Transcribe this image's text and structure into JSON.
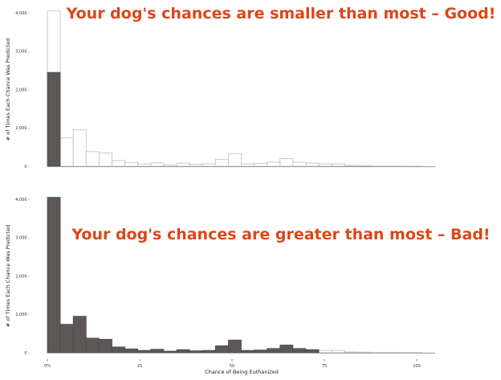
{
  "chart_data": [
    {
      "type": "bar",
      "subtype": "overlaid-histogram",
      "annotation": "Your dog's chances are smaller than most – Good!",
      "ylabel": "# of Times Each Chance Was Predicted",
      "xlabel": "",
      "ylim": [
        0,
        4000
      ],
      "yticks": [
        0,
        1000,
        2000,
        3000,
        4000
      ],
      "ytick_labels": [
        "0 -",
        "1,000 -",
        "2,000 -",
        "3,000 -",
        "4,000 -"
      ],
      "bin_width": 3.5,
      "series": [
        {
          "values": [
            4050,
            740,
            950,
            380,
            350,
            150,
            100,
            60,
            90,
            40,
            80,
            50,
            60,
            180,
            330,
            60,
            70,
            110,
            200,
            110,
            80,
            60,
            60,
            20,
            15,
            5,
            5,
            3,
            2,
            0
          ],
          "style": "outline"
        },
        {
          "values": [
            2450,
            0,
            0,
            0,
            0,
            0,
            0,
            0,
            0,
            0,
            0,
            0,
            0,
            0,
            0,
            0,
            0,
            0,
            0,
            0,
            0,
            0,
            0,
            0,
            0,
            0,
            0,
            0,
            0,
            0
          ],
          "style": "filled"
        }
      ]
    },
    {
      "type": "bar",
      "subtype": "overlaid-histogram",
      "annotation": "Your dog's chances are greater than most – Bad!",
      "ylabel": "# of Times Each Chance Was Predicted",
      "xlabel": "Chance of Being Euthanized",
      "ylim": [
        0,
        4000
      ],
      "xlim": [
        0,
        105
      ],
      "yticks": [
        0,
        1000,
        2000,
        3000,
        4000
      ],
      "ytick_labels": [
        "0 -",
        "1,000 -",
        "2,000 -",
        "3,000 -",
        "4,000 -"
      ],
      "xticks": [
        0,
        25,
        50,
        75,
        100
      ],
      "xtick_labels": [
        "0%",
        "25",
        "50",
        "75",
        "100"
      ],
      "bin_width": 3.5,
      "series": [
        {
          "values": [
            4050,
            740,
            950,
            380,
            350,
            150,
            100,
            60,
            90,
            40,
            80,
            50,
            60,
            180,
            330,
            60,
            70,
            110,
            200,
            110,
            80,
            60,
            60,
            20,
            15,
            5,
            5,
            3,
            2,
            0
          ],
          "style": "outline"
        },
        {
          "values": [
            4050,
            740,
            950,
            380,
            350,
            150,
            100,
            60,
            90,
            40,
            80,
            50,
            60,
            180,
            330,
            60,
            70,
            110,
            200,
            110,
            80,
            0,
            0,
            0,
            0,
            0,
            0,
            0,
            0,
            0
          ],
          "style": "filled"
        }
      ]
    }
  ],
  "colors": {
    "annotation": "#d9481a",
    "bar_fill": "#5d5857",
    "bar_outline": "#c4c4c4",
    "axis_line": "#999999",
    "text": "#222222"
  }
}
